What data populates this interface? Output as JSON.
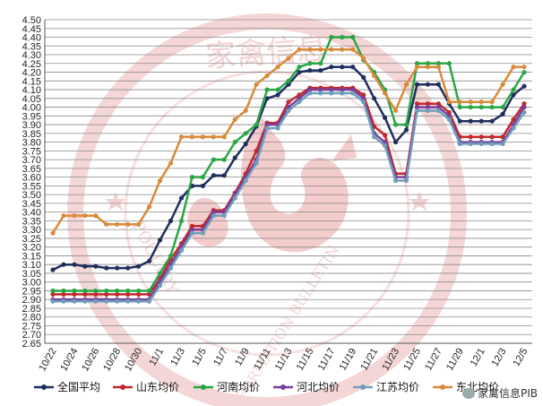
{
  "chart_data": {
    "type": "line",
    "title": "",
    "xlabel": "",
    "ylabel": "",
    "ylim": [
      2.65,
      4.5
    ],
    "ytick_step": 0.05,
    "grid": true,
    "legend_position": "bottom",
    "x_tick_labels_shown": [
      "10/22",
      "10/24",
      "10/26",
      "10/28",
      "10/30",
      "11/1",
      "11/3",
      "11/5",
      "11/7",
      "11/9",
      "11/11",
      "11/13",
      "11/15",
      "11/17",
      "11/19",
      "11/21",
      "11/23",
      "11/25",
      "11/27",
      "11/29",
      "12/1",
      "12/3",
      "12/5"
    ],
    "categories": [
      "10/22",
      "10/23",
      "10/24",
      "10/25",
      "10/26",
      "10/27",
      "10/28",
      "10/29",
      "10/30",
      "10/31",
      "11/1",
      "11/2",
      "11/3",
      "11/4",
      "11/5",
      "11/6",
      "11/7",
      "11/8",
      "11/9",
      "11/10",
      "11/11",
      "11/12",
      "11/13",
      "11/14",
      "11/15",
      "11/16",
      "11/17",
      "11/18",
      "11/19",
      "11/20",
      "11/21",
      "11/22",
      "11/23",
      "11/24",
      "11/25",
      "11/26",
      "11/27",
      "11/28",
      "11/29",
      "11/30",
      "12/1",
      "12/2",
      "12/3",
      "12/4",
      "12/5"
    ],
    "series": [
      {
        "name": "全国平均",
        "color": "#1f2e5c",
        "values": [
          3.07,
          3.1,
          3.1,
          3.09,
          3.09,
          3.08,
          3.08,
          3.08,
          3.09,
          3.12,
          3.24,
          3.35,
          3.48,
          3.55,
          3.55,
          3.61,
          3.61,
          3.71,
          3.79,
          3.89,
          4.05,
          4.07,
          4.13,
          4.2,
          4.21,
          4.21,
          4.23,
          4.23,
          4.23,
          4.17,
          4.05,
          3.94,
          3.8,
          3.87,
          4.13,
          4.13,
          4.13,
          4.02,
          3.92,
          3.92,
          3.92,
          3.92,
          3.96,
          4.07,
          4.12
        ]
      },
      {
        "name": "山东均价",
        "color": "#c0282d",
        "values": [
          2.93,
          2.93,
          2.93,
          2.93,
          2.93,
          2.93,
          2.93,
          2.93,
          2.93,
          2.93,
          3.02,
          3.13,
          3.22,
          3.32,
          3.32,
          3.41,
          3.41,
          3.51,
          3.62,
          3.75,
          3.91,
          3.91,
          4.03,
          4.07,
          4.11,
          4.11,
          4.11,
          4.11,
          4.11,
          4.07,
          3.89,
          3.84,
          3.62,
          3.62,
          4.02,
          4.02,
          4.02,
          3.97,
          3.83,
          3.83,
          3.83,
          3.83,
          3.83,
          3.93,
          4.02
        ]
      },
      {
        "name": "河南均价",
        "color": "#2aa545",
        "values": [
          2.95,
          2.95,
          2.95,
          2.95,
          2.95,
          2.95,
          2.95,
          2.95,
          2.95,
          2.95,
          3.05,
          3.15,
          3.35,
          3.6,
          3.6,
          3.7,
          3.7,
          3.8,
          3.85,
          3.9,
          4.1,
          4.1,
          4.15,
          4.23,
          4.25,
          4.25,
          4.4,
          4.4,
          4.4,
          4.27,
          4.2,
          4.1,
          3.9,
          3.9,
          4.25,
          4.25,
          4.25,
          4.25,
          4.0,
          4.0,
          4.0,
          4.0,
          4.0,
          4.1,
          4.2
        ]
      },
      {
        "name": "河北均价",
        "color": "#7a3f9a",
        "values": [
          2.9,
          2.9,
          2.9,
          2.9,
          2.9,
          2.9,
          2.9,
          2.9,
          2.9,
          2.9,
          3.0,
          3.1,
          3.2,
          3.3,
          3.3,
          3.4,
          3.4,
          3.5,
          3.6,
          3.7,
          3.9,
          3.9,
          4.0,
          4.05,
          4.1,
          4.1,
          4.1,
          4.1,
          4.1,
          4.05,
          3.85,
          3.8,
          3.6,
          3.6,
          4.0,
          4.0,
          4.0,
          3.95,
          3.8,
          3.8,
          3.8,
          3.8,
          3.8,
          3.9,
          4.0
        ]
      },
      {
        "name": "江苏均价",
        "color": "#6f9ebc",
        "values": [
          2.89,
          2.89,
          2.89,
          2.89,
          2.89,
          2.89,
          2.89,
          2.89,
          2.89,
          2.89,
          2.98,
          3.08,
          3.18,
          3.28,
          3.28,
          3.38,
          3.38,
          3.48,
          3.58,
          3.68,
          3.88,
          3.88,
          3.98,
          4.03,
          4.08,
          4.08,
          4.08,
          4.08,
          4.08,
          4.03,
          3.83,
          3.78,
          3.58,
          3.58,
          3.98,
          3.98,
          3.98,
          3.93,
          3.79,
          3.79,
          3.79,
          3.79,
          3.79,
          3.88,
          3.97
        ]
      },
      {
        "name": "东北均价",
        "color": "#d98a3b",
        "values": [
          3.28,
          3.38,
          3.38,
          3.38,
          3.38,
          3.33,
          3.33,
          3.33,
          3.33,
          3.43,
          3.58,
          3.68,
          3.83,
          3.83,
          3.83,
          3.83,
          3.83,
          3.93,
          3.98,
          4.13,
          4.18,
          4.23,
          4.28,
          4.33,
          4.33,
          4.33,
          4.33,
          4.33,
          4.33,
          4.28,
          4.18,
          4.08,
          3.98,
          4.13,
          4.23,
          4.23,
          4.23,
          4.03,
          4.03,
          4.03,
          4.03,
          4.03,
          4.13,
          4.23,
          4.23
        ]
      }
    ]
  },
  "watermark": {
    "top_text": "家禽信息",
    "left_text": "POULTRY",
    "bottom_text": "INFORMATION BULLETIN"
  },
  "social_badge": {
    "text": "家禽信息PIB"
  }
}
